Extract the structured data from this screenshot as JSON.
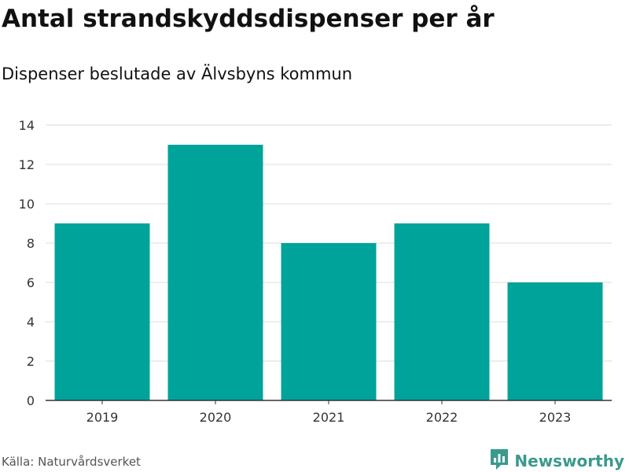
{
  "header": {
    "title": "Antal strandskyddsdispenser per år",
    "subtitle": "Dispenser beslutade av Älvsbyns kommun"
  },
  "footer": {
    "source": "Källa: Naturvårdsverket",
    "brand": "Newsworthy"
  },
  "colors": {
    "bar": "#00a39a",
    "grid": "#dddddd",
    "axis": "#333333",
    "brand": "#3a9a8c"
  },
  "chart_data": {
    "type": "bar",
    "title": "Antal strandskyddsdispenser per år",
    "subtitle": "Dispenser beslutade av Älvsbyns kommun",
    "categories": [
      "2019",
      "2020",
      "2021",
      "2022",
      "2023"
    ],
    "values": [
      9,
      13,
      8,
      9,
      6
    ],
    "ylim": [
      0,
      14
    ],
    "yticks": [
      0,
      2,
      4,
      6,
      8,
      10,
      12,
      14
    ],
    "xlabel": "",
    "ylabel": "",
    "grid": true,
    "legend": "none"
  }
}
